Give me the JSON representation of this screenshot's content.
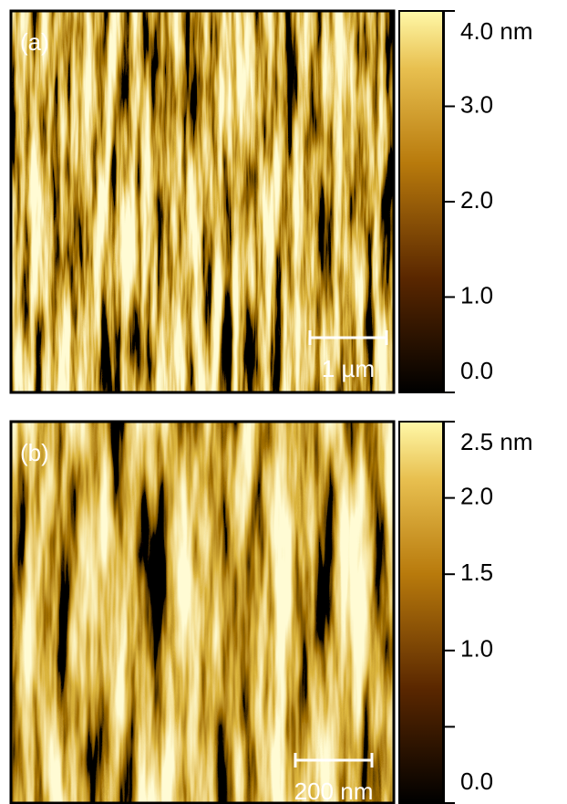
{
  "panels": [
    {
      "label": "(a)",
      "scale_bar": "1 µm",
      "colorbar": {
        "lim": [
          0,
          4.0
        ],
        "ticks": [
          {
            "value": 4.0,
            "label": "4.0 nm"
          },
          {
            "value": 3.0,
            "label": "3.0"
          },
          {
            "value": 2.0,
            "label": "2.0"
          },
          {
            "value": 1.0,
            "label": "1.0"
          },
          {
            "value": 0,
            "label": "0.0"
          }
        ],
        "minor_ticks": []
      }
    },
    {
      "label": "(b)",
      "scale_bar": "200 nm",
      "colorbar": {
        "lim": [
          0,
          2.5
        ],
        "ticks": [
          {
            "value": 2.5,
            "label": "2.5 nm"
          },
          {
            "value": 2.0,
            "label": "2.0"
          },
          {
            "value": 1.5,
            "label": "1.5"
          },
          {
            "value": 1.0,
            "label": "1.0"
          },
          {
            "value": 0,
            "label": "0.0"
          }
        ],
        "minor_ticks": [
          0.5
        ]
      }
    }
  ]
}
